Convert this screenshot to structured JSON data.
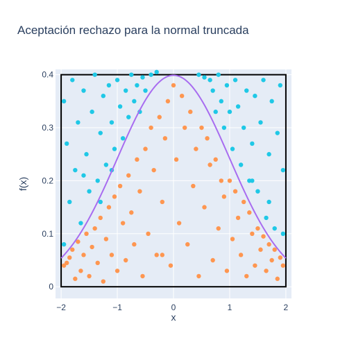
{
  "chart_data": {
    "type": "scatter",
    "title": "Aceptación rechazo para la normal truncada",
    "xlabel": "x",
    "ylabel": "f(x)",
    "xlim": [
      -2.1,
      2.1
    ],
    "ylim": [
      -0.022,
      0.41
    ],
    "x_ticks": [
      -2,
      -1,
      0,
      1,
      2
    ],
    "x_tick_labels": [
      "−2",
      "−1",
      "0",
      "1",
      "2"
    ],
    "y_ticks": [
      0,
      0.1,
      0.2,
      0.3,
      0.4
    ],
    "y_tick_labels": [
      "0",
      "0.1",
      "0.2",
      "0.3",
      "0.4"
    ],
    "grid": true,
    "legend": "none",
    "box": {
      "x": [
        -2,
        2
      ],
      "y": [
        0,
        0.4
      ]
    },
    "curve": {
      "name": "",
      "mu": 0,
      "sigma": 1,
      "x_range": [
        -2,
        2
      ],
      "color": "#a86cf0"
    },
    "accepted_color": "#fe9650",
    "rejected_color": "#1fc8e6",
    "accepted_points": [
      [
        -1.95,
        0.04
      ],
      [
        -1.9,
        0.045
      ],
      [
        -1.85,
        0.055
      ],
      [
        -1.8,
        0.07
      ],
      [
        -1.75,
        0.015
      ],
      [
        -1.7,
        0.085
      ],
      [
        -1.65,
        0.03
      ],
      [
        -1.6,
        0.06
      ],
      [
        -1.55,
        0.1
      ],
      [
        -1.5,
        0.02
      ],
      [
        -1.45,
        0.075
      ],
      [
        -1.4,
        0.11
      ],
      [
        -1.35,
        0.045
      ],
      [
        -1.3,
        0.13
      ],
      [
        -1.25,
        0.01
      ],
      [
        -1.2,
        0.09
      ],
      [
        -1.15,
        0.15
      ],
      [
        -1.1,
        0.06
      ],
      [
        -1.05,
        0.17
      ],
      [
        -1.0,
        0.03
      ],
      [
        -0.95,
        0.19
      ],
      [
        -0.9,
        0.12
      ],
      [
        -0.85,
        0.05
      ],
      [
        -0.8,
        0.21
      ],
      [
        -0.75,
        0.14
      ],
      [
        -0.7,
        0.08
      ],
      [
        -0.65,
        0.24
      ],
      [
        -0.6,
        0.18
      ],
      [
        -0.55,
        0.02
      ],
      [
        -0.5,
        0.26
      ],
      [
        -0.45,
        0.1
      ],
      [
        -0.4,
        0.3
      ],
      [
        -0.35,
        0.22
      ],
      [
        -0.3,
        0.06
      ],
      [
        -0.25,
        0.32
      ],
      [
        -0.2,
        0.16
      ],
      [
        -0.15,
        0.28
      ],
      [
        -0.1,
        0.35
      ],
      [
        -0.05,
        0.04
      ],
      [
        0.0,
        0.38
      ],
      [
        0.05,
        0.24
      ],
      [
        0.1,
        0.12
      ],
      [
        0.15,
        0.36
      ],
      [
        0.2,
        0.3
      ],
      [
        0.25,
        0.08
      ],
      [
        0.3,
        0.33
      ],
      [
        0.35,
        0.19
      ],
      [
        0.4,
        0.26
      ],
      [
        0.45,
        0.02
      ],
      [
        0.5,
        0.3
      ],
      [
        0.55,
        0.15
      ],
      [
        0.6,
        0.28
      ],
      [
        0.65,
        0.23
      ],
      [
        0.7,
        0.05
      ],
      [
        0.75,
        0.24
      ],
      [
        0.8,
        0.11
      ],
      [
        0.85,
        0.2
      ],
      [
        0.9,
        0.17
      ],
      [
        0.95,
        0.03
      ],
      [
        1.0,
        0.2
      ],
      [
        1.05,
        0.09
      ],
      [
        1.1,
        0.18
      ],
      [
        1.15,
        0.13
      ],
      [
        1.2,
        0.06
      ],
      [
        1.25,
        0.16
      ],
      [
        1.3,
        0.02
      ],
      [
        1.35,
        0.14
      ],
      [
        1.4,
        0.1
      ],
      [
        1.45,
        0.04
      ],
      [
        1.5,
        0.11
      ],
      [
        1.55,
        0.07
      ],
      [
        1.6,
        0.095
      ],
      [
        1.65,
        0.03
      ],
      [
        1.7,
        0.08
      ],
      [
        1.75,
        0.05
      ],
      [
        1.8,
        0.07
      ],
      [
        1.85,
        0.015
      ],
      [
        1.9,
        0.055
      ],
      [
        1.95,
        0.04
      ],
      [
        -0.2,
        0.06
      ]
    ],
    "rejected_points": [
      [
        -1.95,
        0.35
      ],
      [
        -1.9,
        0.27
      ],
      [
        -1.85,
        0.16
      ],
      [
        -1.8,
        0.39
      ],
      [
        -1.75,
        0.22
      ],
      [
        -1.7,
        0.31
      ],
      [
        -1.65,
        0.12
      ],
      [
        -1.6,
        0.37
      ],
      [
        -1.55,
        0.25
      ],
      [
        -1.5,
        0.18
      ],
      [
        -1.45,
        0.33
      ],
      [
        -1.4,
        0.4
      ],
      [
        -1.35,
        0.2
      ],
      [
        -1.3,
        0.29
      ],
      [
        -1.25,
        0.36
      ],
      [
        -1.2,
        0.23
      ],
      [
        -1.15,
        0.38
      ],
      [
        -1.1,
        0.31
      ],
      [
        -1.05,
        0.26
      ],
      [
        -1.0,
        0.39
      ],
      [
        -0.95,
        0.34
      ],
      [
        -0.9,
        0.28
      ],
      [
        -0.85,
        0.37
      ],
      [
        -0.8,
        0.32
      ],
      [
        -0.75,
        0.4
      ],
      [
        -0.7,
        0.35
      ],
      [
        -0.65,
        0.38
      ],
      [
        -0.6,
        0.33
      ],
      [
        -0.55,
        0.395
      ],
      [
        -0.5,
        0.37
      ],
      [
        -0.4,
        0.4
      ],
      [
        -0.3,
        0.405
      ],
      [
        0.45,
        0.4
      ],
      [
        0.55,
        0.395
      ],
      [
        0.65,
        0.39
      ],
      [
        0.7,
        0.37
      ],
      [
        0.75,
        0.33
      ],
      [
        0.8,
        0.4
      ],
      [
        0.85,
        0.35
      ],
      [
        0.9,
        0.3
      ],
      [
        0.95,
        0.38
      ],
      [
        1.0,
        0.33
      ],
      [
        1.05,
        0.26
      ],
      [
        1.1,
        0.39
      ],
      [
        1.15,
        0.34
      ],
      [
        1.2,
        0.23
      ],
      [
        1.25,
        0.3
      ],
      [
        1.3,
        0.37
      ],
      [
        1.35,
        0.2
      ],
      [
        1.4,
        0.27
      ],
      [
        1.45,
        0.36
      ],
      [
        1.5,
        0.18
      ],
      [
        1.55,
        0.31
      ],
      [
        1.6,
        0.39
      ],
      [
        1.65,
        0.13
      ],
      [
        1.7,
        0.25
      ],
      [
        1.75,
        0.35
      ],
      [
        1.8,
        0.11
      ],
      [
        1.85,
        0.29
      ],
      [
        1.9,
        0.38
      ],
      [
        1.95,
        0.22
      ],
      [
        1.95,
        0.1
      ],
      [
        -1.95,
        0.08
      ],
      [
        -1.6,
        0.21
      ],
      [
        -1.3,
        0.16
      ],
      [
        1.7,
        0.16
      ],
      [
        1.4,
        0.2
      ],
      [
        -1.1,
        0.22
      ]
    ]
  }
}
